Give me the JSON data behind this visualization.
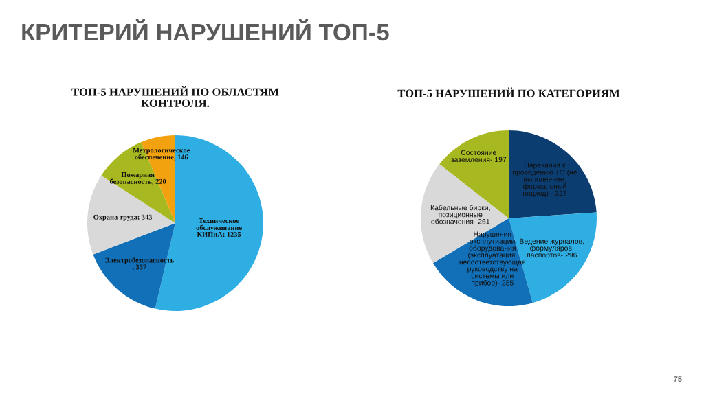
{
  "chart_data": [
    {
      "type": "other",
      "title": "КРИТЕРИЙ НАРУШЕНИЙ ТОП-5",
      "annotations": [
        "75"
      ]
    },
    {
      "type": "pie",
      "title": "ТОП-5 НАРУШЕНИЙ ПО ОБЛАСТЯМ\nКОНТРОЛЯ.",
      "categories": [
        "Техническое\nобслуживание\nКИПиА",
        "Электробезопасность",
        "Охрана труда",
        "Пожарная\nбезопасность",
        "Метрологическое\nобеспечение"
      ],
      "values": [
        1235,
        357,
        343,
        220,
        146
      ],
      "value_labels": [
        "; 1235",
        ", 357",
        "; 343",
        ", 220",
        ", 146"
      ],
      "colors": [
        "#2eaee3",
        "#1270b8",
        "#d9d9d9",
        "#a8b820",
        "#f3a20f"
      ]
    },
    {
      "type": "pie",
      "title": "ТОП-5 НАРУШЕНИЙ ПО КАТЕГОРИЯМ",
      "categories": [
        "Нарекания к\nпроведению ТО (не\nвыполнение,\nформальный\nподход) -",
        "Ведение журналов,\nформуляров,\nпаспортов-",
        "Нарушения\nэксплутиации\nоборудования\n(эксплуатация,\nнесоответствующая\nруководству на\nсистемы или\nприбор)-",
        "Кабельные бирки,\nпозиционные\nобозначения-",
        "Состояние\nзаземления-"
      ],
      "values": [
        327,
        296,
        285,
        261,
        197
      ],
      "value_labels": [
        "327",
        "296",
        "285",
        "261",
        "197"
      ],
      "colors": [
        "#0b3d70",
        "#2eaee3",
        "#1270b8",
        "#d9d9d9",
        "#a8b820"
      ]
    }
  ]
}
